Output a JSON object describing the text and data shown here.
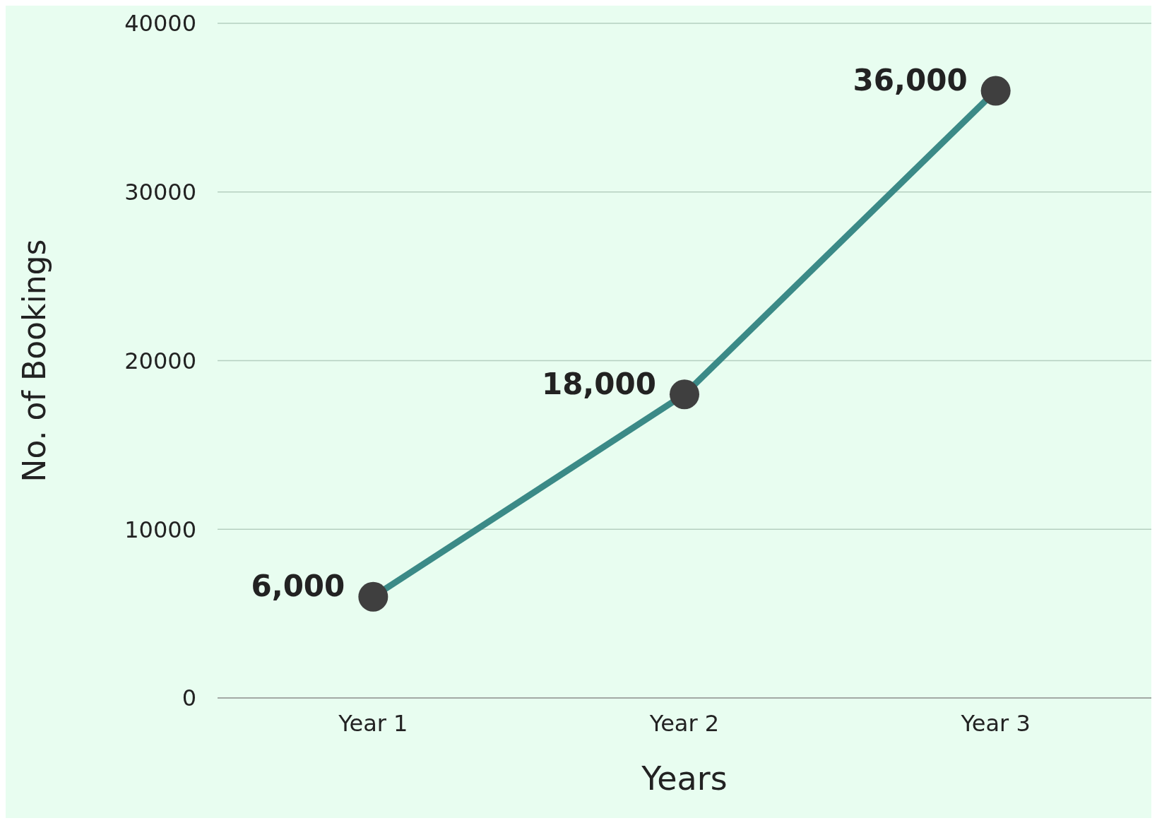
{
  "chart_data": {
    "type": "line",
    "xlabel": "Years",
    "ylabel": "No. of Bookings",
    "categories": [
      "Year 1",
      "Year 2",
      "Year 3"
    ],
    "series": [
      {
        "color": "#3b8a87",
        "values": [
          6000,
          18000,
          36000
        ],
        "value_labels": [
          "6,000",
          "18,000",
          "36,000"
        ]
      }
    ],
    "ylim": [
      0,
      40000
    ],
    "yticks": [
      0,
      10000,
      20000,
      30000,
      40000
    ],
    "grid": "y",
    "marker": "circle",
    "line_style": "solid"
  }
}
